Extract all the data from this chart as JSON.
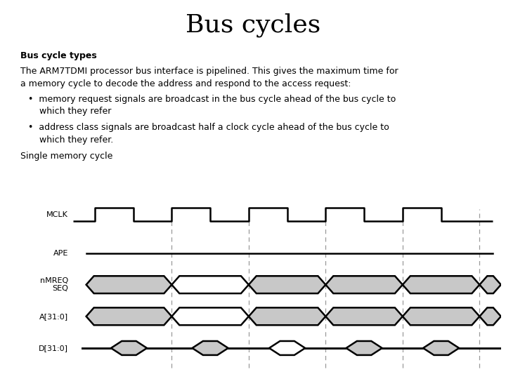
{
  "title": "Bus cycles",
  "title_fontsize": 26,
  "title_font": "serif",
  "bold_heading": "Bus cycle types",
  "paragraph": "The ARM7TDMI processor bus interface is pipelined. This gives the maximum time for\na memory cycle to decode the address and respond to the access request:",
  "bullet1": "memory request signals are broadcast in the bus cycle ahead of the bus cycle to\n    which they refer",
  "bullet2": "address class signals are broadcast half a clock cycle ahead of the bus cycle to\n    which they refer.",
  "sub_heading": "Single memory cycle",
  "bg_color": "#ffffff",
  "signal_color": "#000000",
  "dashed_color": "#999999",
  "gray_fill": "#c8c8c8",
  "white_fill": "#ffffff",
  "text_fontsize": 9,
  "label_fontsize": 8
}
